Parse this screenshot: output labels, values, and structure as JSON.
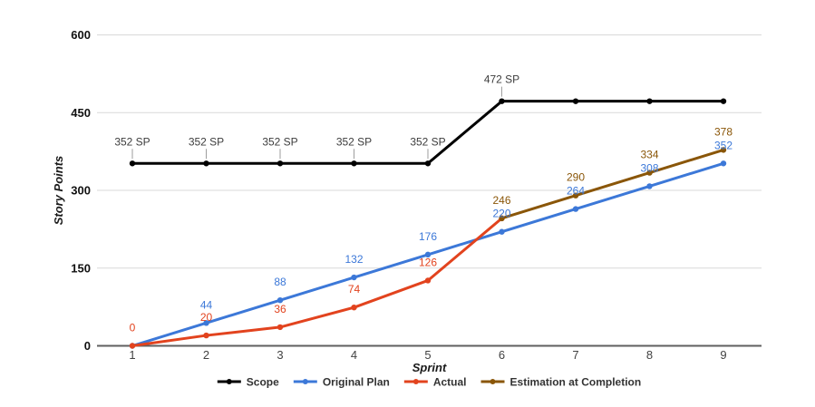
{
  "chart_data": {
    "type": "line",
    "title": "",
    "xlabel": "Sprint",
    "ylabel": "Story Points",
    "categories": [
      "1",
      "2",
      "3",
      "4",
      "5",
      "6",
      "7",
      "8",
      "9"
    ],
    "ylim": [
      0,
      600
    ],
    "yticks": [
      0,
      150,
      300,
      450,
      600
    ],
    "grid": true,
    "legend_position": "bottom",
    "series": [
      {
        "name": "Scope",
        "color": "#000000",
        "annotation_color": "#3d3d3d",
        "leader": true,
        "values": [
          352,
          352,
          352,
          352,
          352,
          472,
          472,
          472,
          472
        ],
        "annotations": [
          "352 SP",
          "352 SP",
          "352 SP",
          "352 SP",
          "352 SP",
          "472 SP",
          null,
          null,
          null
        ]
      },
      {
        "name": "Original Plan",
        "color": "#3c78d8",
        "values": [
          0,
          44,
          88,
          132,
          176,
          220,
          264,
          308,
          352
        ],
        "annotations": [
          null,
          "44",
          "88",
          "132",
          "176",
          "220",
          "264",
          "308",
          "352"
        ]
      },
      {
        "name": "Actual",
        "color": "#e2431e",
        "values": [
          0,
          20,
          36,
          74,
          126,
          246,
          null,
          null,
          null
        ],
        "annotations": [
          "0",
          "20",
          "36",
          "74",
          "126",
          null,
          null,
          null,
          null
        ]
      },
      {
        "name": "Estimation at Completion",
        "color": "#8a5608",
        "values": [
          null,
          null,
          null,
          null,
          null,
          246,
          290,
          334,
          378
        ],
        "annotations": [
          null,
          null,
          null,
          null,
          null,
          "246",
          "290",
          "334",
          "378"
        ]
      }
    ],
    "style": {
      "grid_color": "#d9d9d9",
      "axis_color": "#5f5f5f",
      "ytick_color": "#111111",
      "xtick_color": "#424242",
      "axis_title_color": "#1a1a1a",
      "legend_text_color": "#333333",
      "leader_color": "#9e9e9e"
    }
  }
}
